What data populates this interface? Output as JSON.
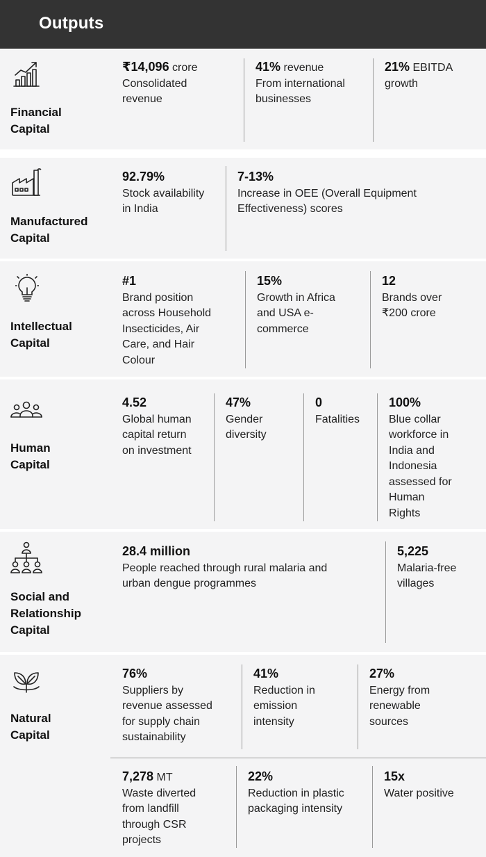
{
  "header": {
    "title": "Outputs"
  },
  "capitals": {
    "financial": {
      "label_line1": "Financial",
      "label_line2": "Capital",
      "icon": "bar-chart-growth-icon",
      "metrics": [
        {
          "value": "₹14,096",
          "unit": "crore",
          "desc1": "Consolidated",
          "desc2": "revenue"
        },
        {
          "value": "41%",
          "unit": "revenue",
          "desc1": "From international",
          "desc2": "businesses"
        },
        {
          "value": "21%",
          "unit": "EBITDA",
          "desc1": "growth"
        }
      ]
    },
    "manufactured": {
      "label_line1": "Manufactured",
      "label_line2": "Capital",
      "icon": "factory-icon",
      "metrics": [
        {
          "value": "92.79%",
          "desc1": "Stock availability",
          "desc2": "in India"
        },
        {
          "value": "7-13%",
          "desc1": "Increase in OEE (Overall Equipment",
          "desc2": "Effectiveness) scores"
        }
      ]
    },
    "intellectual": {
      "label_line1": "Intellectual",
      "label_line2": "Capital",
      "icon": "lightbulb-icon",
      "metrics": [
        {
          "value": "#1",
          "desc1": "Brand position",
          "desc2": "across Household",
          "desc3": "Insecticides, Air",
          "desc4": "Care, and Hair",
          "desc5": "Colour"
        },
        {
          "value": "15%",
          "desc1": "Growth in Africa",
          "desc2": "and USA e-",
          "desc3": "commerce"
        },
        {
          "value": "12",
          "desc1": "Brands over",
          "desc2": "₹200 crore"
        }
      ]
    },
    "human": {
      "label_line1": "Human",
      "label_line2": "Capital",
      "icon": "people-group-icon",
      "metrics": [
        {
          "value": "4.52",
          "desc1": "Global human",
          "desc2": "capital return",
          "desc3": "on investment"
        },
        {
          "value": "47%",
          "desc1": "Gender",
          "desc2": "diversity"
        },
        {
          "value": "0",
          "desc1": "Fatalities"
        },
        {
          "value": "100%",
          "desc1": "Blue collar",
          "desc2": "workforce in",
          "desc3": "India and",
          "desc4": "Indonesia",
          "desc5": "assessed for",
          "desc6": "Human",
          "desc7": "Rights"
        }
      ]
    },
    "social": {
      "label_line1": "Social and",
      "label_line2": "Relationship",
      "label_line3": "Capital",
      "icon": "org-hierarchy-icon",
      "metrics": [
        {
          "value": "28.4 million",
          "desc1": "People reached through rural malaria and",
          "desc2": "urban dengue programmes"
        },
        {
          "value": "5,225",
          "desc1": "Malaria-free",
          "desc2": "villages"
        }
      ]
    },
    "natural": {
      "label_line1": "Natural",
      "label_line2": "Capital",
      "icon": "leaves-icon",
      "metrics": [
        {
          "value": "76%",
          "desc1": "Suppliers by",
          "desc2": "revenue assessed",
          "desc3": "for supply chain",
          "desc4": "sustainability"
        },
        {
          "value": "41%",
          "desc1": "Reduction in",
          "desc2": "emission",
          "desc3": "intensity"
        },
        {
          "value": "27%",
          "desc1": "Energy from",
          "desc2": "renewable",
          "desc3": "sources"
        },
        {
          "value": "7,278",
          "unit": "MT",
          "desc1": "Waste diverted",
          "desc2": "from landfill",
          "desc3": "through CSR",
          "desc4": "projects"
        },
        {
          "value": "22%",
          "desc1": "Reduction in plastic",
          "desc2": "packaging intensity"
        },
        {
          "value": "15x",
          "desc1": "Water positive"
        }
      ]
    }
  },
  "colors": {
    "header_bg": "#333333",
    "section_bg": "#f4f4f5",
    "divider": "#9a9a9a",
    "icon_stroke": "#222222"
  }
}
